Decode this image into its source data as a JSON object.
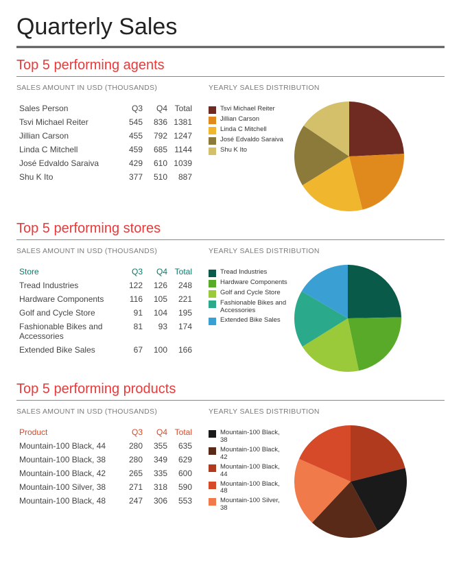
{
  "page_title": "Quarterly Sales",
  "subhead_left": "SALES AMOUNT IN USD (THOUSANDS)",
  "subhead_right": "YEARLY SALES DISTRIBUTION",
  "col_q3": "Q3",
  "col_q4": "Q4",
  "col_total": "Total",
  "sections": [
    {
      "title": "Top 5 performing agents",
      "title_color": "#e83a3a",
      "header_label": "Sales Person",
      "header_color": "#444444",
      "pie_radius": 80,
      "rows": [
        {
          "name": "Tsvi Michael Reiter",
          "q3": "545",
          "q4": "836",
          "total": "1381",
          "value": 1381,
          "color": "#6f2a22"
        },
        {
          "name": "Jillian  Carson",
          "q3": "455",
          "q4": "792",
          "total": "1247",
          "value": 1247,
          "color": "#e08a1e"
        },
        {
          "name": "Linda C Mitchell",
          "q3": "459",
          "q4": "685",
          "total": "1144",
          "value": 1144,
          "color": "#f0b62e"
        },
        {
          "name": "José Edvaldo Saraiva",
          "q3": "429",
          "q4": "610",
          "total": "1039",
          "value": 1039,
          "color": "#8c7a3a"
        },
        {
          "name": "Shu K Ito",
          "q3": "377",
          "q4": "510",
          "total": "887",
          "value": 887,
          "color": "#d4c06a"
        }
      ]
    },
    {
      "title": "Top 5 performing stores",
      "title_color": "#e83a3a",
      "header_label": "Store",
      "header_color": "#0a7a6a",
      "pie_radius": 78,
      "rows": [
        {
          "name": "Tread Industries",
          "q3": "122",
          "q4": "126",
          "total": "248",
          "value": 248,
          "color": "#0a5a4a"
        },
        {
          "name": "Hardware Components",
          "q3": "116",
          "q4": "105",
          "total": "221",
          "value": 221,
          "color": "#5aaa2a"
        },
        {
          "name": "Golf and Cycle Store",
          "q3": "91",
          "q4": "104",
          "total": "195",
          "value": 195,
          "color": "#9ac93a"
        },
        {
          "name": "Fashionable Bikes and Accessories",
          "q3": "81",
          "q4": "93",
          "total": "174",
          "value": 174,
          "color": "#2aaa8a"
        },
        {
          "name": "Extended Bike Sales",
          "q3": "67",
          "q4": "100",
          "total": "166",
          "value": 166,
          "color": "#3aa0d4"
        }
      ]
    },
    {
      "title": "Top 5 performing products",
      "title_color": "#e83a3a",
      "header_label": "Product",
      "header_color": "#d64a2a",
      "pie_radius": 82,
      "legend_order": [
        1,
        2,
        0,
        4,
        3
      ],
      "rows": [
        {
          "name": "Mountain-100 Black, 44",
          "q3": "280",
          "q4": "355",
          "total": "635",
          "value": 635,
          "color": "#b03a1e"
        },
        {
          "name": "Mountain-100 Black, 38",
          "q3": "280",
          "q4": "349",
          "total": "629",
          "value": 629,
          "color": "#1a1a1a"
        },
        {
          "name": "Mountain-100 Black, 42",
          "q3": "265",
          "q4": "335",
          "total": "600",
          "value": 600,
          "color": "#5a2a18"
        },
        {
          "name": "Mountain-100 Silver, 38",
          "q3": "271",
          "q4": "318",
          "total": "590",
          "value": 590,
          "color": "#f07a4a"
        },
        {
          "name": "Mountain-100 Black, 48",
          "q3": "247",
          "q4": "306",
          "total": "553",
          "value": 553,
          "color": "#d64a2a"
        }
      ]
    }
  ]
}
